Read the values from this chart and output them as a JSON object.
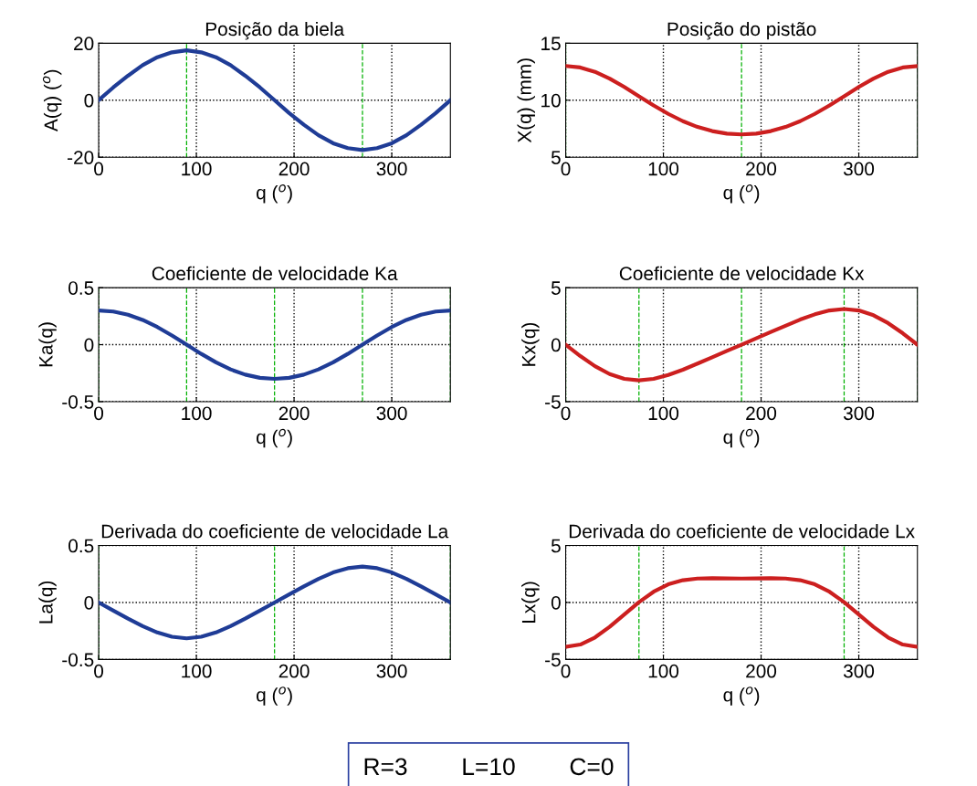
{
  "chart_data": [
    {
      "type": "line",
      "title": "Posição da biela",
      "xlabel": "q ($^{o}$)",
      "ylabel": "A(q) ($^{o}$)",
      "x": [
        0,
        15,
        30,
        45,
        60,
        75,
        90,
        105,
        120,
        135,
        150,
        165,
        180,
        195,
        210,
        225,
        240,
        255,
        270,
        285,
        300,
        315,
        330,
        345,
        360
      ],
      "series": [
        {
          "color": "#1f3c96",
          "values": [
            0,
            4.5,
            8.6,
            12.3,
            15.1,
            16.8,
            17.5,
            16.8,
            15.1,
            12.3,
            8.6,
            4.5,
            0,
            -4.5,
            -8.6,
            -12.3,
            -15.1,
            -16.8,
            -17.5,
            -16.8,
            -15.1,
            -12.3,
            -8.6,
            -4.5,
            0
          ]
        }
      ],
      "xlim": [
        0,
        360
      ],
      "ylim": [
        -20,
        20
      ],
      "xticks": [
        0,
        100,
        200,
        300
      ],
      "yticks": [
        -20,
        0,
        20
      ],
      "grid": true,
      "line_style": "solid",
      "ref_lines": [
        {
          "axis": "x",
          "value": 90,
          "color": "#00b000",
          "line_style": "dashed"
        },
        {
          "axis": "x",
          "value": 270,
          "color": "#00b000",
          "line_style": "dashed"
        }
      ]
    },
    {
      "type": "line",
      "title": "Posição do pistão",
      "xlabel": "q ($^{o}$)",
      "ylabel": "X(q) (mm)",
      "x": [
        0,
        15,
        30,
        45,
        60,
        75,
        90,
        105,
        120,
        135,
        150,
        165,
        180,
        195,
        210,
        225,
        240,
        255,
        270,
        285,
        300,
        315,
        330,
        345,
        360
      ],
      "series": [
        {
          "color": "#cc1f1f",
          "values": [
            13,
            12.87,
            12.49,
            11.89,
            11.16,
            10.35,
            9.54,
            8.8,
            8.16,
            7.65,
            7.29,
            7.07,
            7,
            7.07,
            7.29,
            7.65,
            8.16,
            8.8,
            9.54,
            10.35,
            11.16,
            11.89,
            12.49,
            12.87,
            13
          ]
        }
      ],
      "xlim": [
        0,
        360
      ],
      "ylim": [
        5,
        15
      ],
      "xticks": [
        0,
        100,
        200,
        300
      ],
      "yticks": [
        5,
        10,
        15
      ],
      "grid": true,
      "line_style": "solid",
      "ref_lines": [
        {
          "axis": "x",
          "value": 0,
          "color": "#00b000",
          "line_style": "dashed"
        },
        {
          "axis": "x",
          "value": 180,
          "color": "#00b000",
          "line_style": "dashed"
        },
        {
          "axis": "x",
          "value": 360,
          "color": "#00b000",
          "line_style": "dashed"
        }
      ]
    },
    {
      "type": "line",
      "title": "Coeficiente de velocidade Ka",
      "xlabel": "q ($^{o}$)",
      "ylabel": "Ka(q)",
      "x": [
        0,
        15,
        30,
        45,
        60,
        75,
        90,
        105,
        120,
        135,
        150,
        165,
        180,
        195,
        210,
        225,
        240,
        255,
        270,
        285,
        300,
        315,
        330,
        345,
        360
      ],
      "series": [
        {
          "color": "#1f3c96",
          "values": [
            0.3,
            0.291,
            0.263,
            0.217,
            0.155,
            0.081,
            0,
            -0.081,
            -0.155,
            -0.217,
            -0.263,
            -0.291,
            -0.3,
            -0.291,
            -0.263,
            -0.217,
            -0.155,
            -0.081,
            0,
            0.081,
            0.155,
            0.217,
            0.263,
            0.291,
            0.3
          ]
        }
      ],
      "xlim": [
        0,
        360
      ],
      "ylim": [
        -0.5,
        0.5
      ],
      "xticks": [
        0,
        100,
        200,
        300
      ],
      "yticks": [
        -0.5,
        0,
        0.5
      ],
      "grid": true,
      "line_style": "solid",
      "ref_lines": [
        {
          "axis": "x",
          "value": 0,
          "color": "#00b000",
          "line_style": "dashed"
        },
        {
          "axis": "x",
          "value": 90,
          "color": "#00b000",
          "line_style": "dashed"
        },
        {
          "axis": "x",
          "value": 180,
          "color": "#00b000",
          "line_style": "dashed"
        },
        {
          "axis": "x",
          "value": 270,
          "color": "#00b000",
          "line_style": "dashed"
        },
        {
          "axis": "x",
          "value": 360,
          "color": "#00b000",
          "line_style": "dashed"
        }
      ]
    },
    {
      "type": "line",
      "title": "Coeficiente de velocidade Kx",
      "xlabel": "q ($^{o}$)",
      "ylabel": "Kx(q)",
      "x": [
        0,
        15,
        30,
        45,
        60,
        75,
        90,
        105,
        120,
        135,
        150,
        165,
        180,
        195,
        210,
        225,
        240,
        255,
        270,
        285,
        300,
        315,
        330,
        345,
        360
      ],
      "series": [
        {
          "color": "#cc1f1f",
          "values": [
            0,
            -1,
            -1.89,
            -2.58,
            -3,
            -3.13,
            -3,
            -2.66,
            -2.2,
            -1.66,
            -1.11,
            -0.55,
            0,
            0.55,
            1.11,
            1.66,
            2.2,
            2.66,
            3,
            3.13,
            3,
            2.58,
            1.89,
            1,
            0
          ]
        }
      ],
      "xlim": [
        0,
        360
      ],
      "ylim": [
        -5,
        5
      ],
      "xticks": [
        0,
        100,
        200,
        300
      ],
      "yticks": [
        -5,
        0,
        5
      ],
      "grid": true,
      "line_style": "solid",
      "ref_lines": [
        {
          "axis": "x",
          "value": 0,
          "color": "#00b000",
          "line_style": "dashed"
        },
        {
          "axis": "x",
          "value": 75,
          "color": "#00b000",
          "line_style": "dashed"
        },
        {
          "axis": "x",
          "value": 180,
          "color": "#00b000",
          "line_style": "dashed"
        },
        {
          "axis": "x",
          "value": 285,
          "color": "#00b000",
          "line_style": "dashed"
        },
        {
          "axis": "x",
          "value": 360,
          "color": "#00b000",
          "line_style": "dashed"
        }
      ]
    },
    {
      "type": "line",
      "title": "Derivada do coeficiente de velocidade La",
      "xlabel": "q ($^{o}$)",
      "ylabel": "La(q)",
      "x": [
        0,
        15,
        30,
        45,
        60,
        75,
        90,
        105,
        120,
        135,
        150,
        165,
        180,
        195,
        210,
        225,
        240,
        255,
        270,
        285,
        300,
        315,
        330,
        345,
        360
      ],
      "series": [
        {
          "color": "#1f3c96",
          "values": [
            0,
            -0.071,
            -0.141,
            -0.207,
            -0.263,
            -0.301,
            -0.315,
            -0.301,
            -0.263,
            -0.207,
            -0.141,
            -0.071,
            0,
            0.071,
            0.141,
            0.207,
            0.263,
            0.301,
            0.315,
            0.301,
            0.263,
            0.207,
            0.141,
            0.071,
            0
          ]
        }
      ],
      "xlim": [
        0,
        360
      ],
      "ylim": [
        -0.5,
        0.5
      ],
      "xticks": [
        0,
        100,
        200,
        300
      ],
      "yticks": [
        -0.5,
        0,
        0.5
      ],
      "grid": true,
      "line_style": "solid",
      "ref_lines": [
        {
          "axis": "x",
          "value": 0,
          "color": "#00b000",
          "line_style": "dashed"
        },
        {
          "axis": "x",
          "value": 180,
          "color": "#00b000",
          "line_style": "dashed"
        },
        {
          "axis": "x",
          "value": 360,
          "color": "#00b000",
          "line_style": "dashed"
        }
      ]
    },
    {
      "type": "line",
      "title": "Derivada do coeficiente de velocidade Lx",
      "xlabel": "q ($^{o}$)",
      "ylabel": "Lx(q)",
      "x": [
        0,
        15,
        30,
        45,
        60,
        75,
        90,
        105,
        120,
        135,
        150,
        165,
        180,
        195,
        210,
        225,
        240,
        255,
        270,
        285,
        300,
        315,
        330,
        345,
        360
      ],
      "series": [
        {
          "color": "#cc1f1f",
          "values": [
            -3.9,
            -3.69,
            -3.07,
            -2.14,
            -1.05,
            0.03,
            0.94,
            1.59,
            1.95,
            2.1,
            2.13,
            2.11,
            2.1,
            2.11,
            2.13,
            2.1,
            1.95,
            1.59,
            0.94,
            0.03,
            -1.05,
            -2.14,
            -3.07,
            -3.69,
            -3.9
          ]
        }
      ],
      "xlim": [
        0,
        360
      ],
      "ylim": [
        -5,
        5
      ],
      "xticks": [
        0,
        100,
        200,
        300
      ],
      "yticks": [
        -5,
        0,
        5
      ],
      "grid": true,
      "line_style": "solid",
      "ref_lines": [
        {
          "axis": "x",
          "value": 75,
          "color": "#00b000",
          "line_style": "dashed"
        },
        {
          "axis": "x",
          "value": 285,
          "color": "#00b000",
          "line_style": "dashed"
        }
      ],
      "annotations": [
        "R=3        L=10        C=0"
      ]
    }
  ]
}
